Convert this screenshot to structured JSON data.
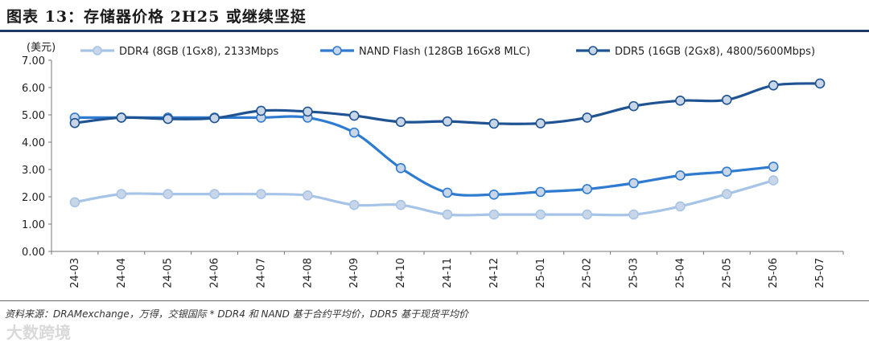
{
  "figure": {
    "title": "图表 13：存储器价格 2H25 或继续坚挺",
    "source": "资料来源：DRAMexchange，万得，交银国际    * DDR4 和 NAND 基于合约平均价，DDR5 基于现货平均价",
    "watermark": "大数跨境"
  },
  "chart_data": {
    "type": "line",
    "ylabel": "(美元)",
    "xlabel": "",
    "ylim": [
      0,
      7
    ],
    "yticks": [
      "0.00",
      "1.00",
      "2.00",
      "3.00",
      "4.00",
      "5.00",
      "6.00",
      "7.00"
    ],
    "categories": [
      "24-03",
      "24-04",
      "24-05",
      "24-06",
      "24-07",
      "24-08",
      "24-09",
      "24-10",
      "24-11",
      "24-12",
      "25-01",
      "25-02",
      "25-03",
      "25-04",
      "25-05",
      "25-06",
      "25-07"
    ],
    "legend_position": "top",
    "series": [
      {
        "name": "DDR4 (8GB (1Gx8), 2133Mbps",
        "color": "#a6c4e8",
        "values": [
          1.8,
          2.1,
          2.1,
          2.1,
          2.1,
          2.05,
          1.7,
          1.7,
          1.35,
          1.35,
          1.35,
          1.35,
          1.35,
          1.65,
          2.1,
          2.6,
          null
        ]
      },
      {
        "name": "NAND Flash (128GB 16Gx8 MLC)",
        "color": "#2f7bd0",
        "values": [
          4.9,
          4.9,
          4.9,
          4.9,
          4.9,
          4.9,
          4.35,
          3.05,
          2.15,
          2.08,
          2.18,
          2.28,
          2.5,
          2.78,
          2.92,
          3.1,
          null
        ]
      },
      {
        "name": "DDR5 (16GB (2Gx8), 4800/5600Mbps)",
        "color": "#1f5392",
        "values": [
          4.7,
          4.9,
          4.85,
          4.88,
          5.15,
          5.12,
          4.97,
          4.74,
          4.76,
          4.68,
          4.69,
          4.9,
          5.32,
          5.52,
          5.55,
          6.08,
          6.15
        ]
      }
    ]
  }
}
